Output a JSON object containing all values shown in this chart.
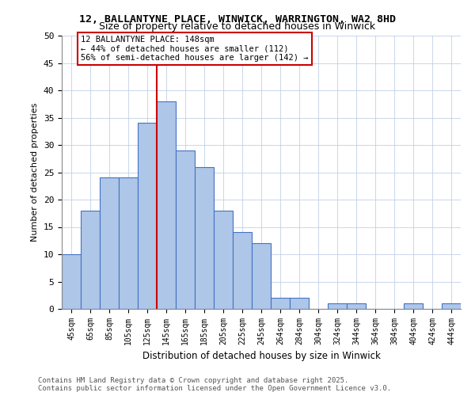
{
  "title1": "12, BALLANTYNE PLACE, WINWICK, WARRINGTON, WA2 8HD",
  "title2": "Size of property relative to detached houses in Winwick",
  "xlabel": "Distribution of detached houses by size in Winwick",
  "ylabel": "Number of detached properties",
  "bar_labels": [
    "45sqm",
    "65sqm",
    "85sqm",
    "105sqm",
    "125sqm",
    "145sqm",
    "165sqm",
    "185sqm",
    "205sqm",
    "225sqm",
    "245sqm",
    "264sqm",
    "284sqm",
    "304sqm",
    "324sqm",
    "344sqm",
    "364sqm",
    "384sqm",
    "404sqm",
    "424sqm",
    "444sqm"
  ],
  "bar_values": [
    10,
    18,
    24,
    24,
    34,
    38,
    29,
    26,
    18,
    14,
    12,
    2,
    2,
    0,
    1,
    1,
    0,
    0,
    1,
    0,
    1
  ],
  "bar_color": "#aec6e8",
  "bar_edge_color": "#4472c4",
  "vline_x": 5,
  "vline_color": "#cc0000",
  "annotation_text": "12 BALLANTYNE PLACE: 148sqm\n← 44% of detached houses are smaller (112)\n56% of semi-detached houses are larger (142) →",
  "annotation_box_color": "#cc0000",
  "ylim": [
    0,
    50
  ],
  "yticks": [
    0,
    5,
    10,
    15,
    20,
    25,
    30,
    35,
    40,
    45,
    50
  ],
  "footer": "Contains HM Land Registry data © Crown copyright and database right 2025.\nContains public sector information licensed under the Open Government Licence v3.0.",
  "bg_color": "#ffffff",
  "grid_color": "#c0d0e8"
}
